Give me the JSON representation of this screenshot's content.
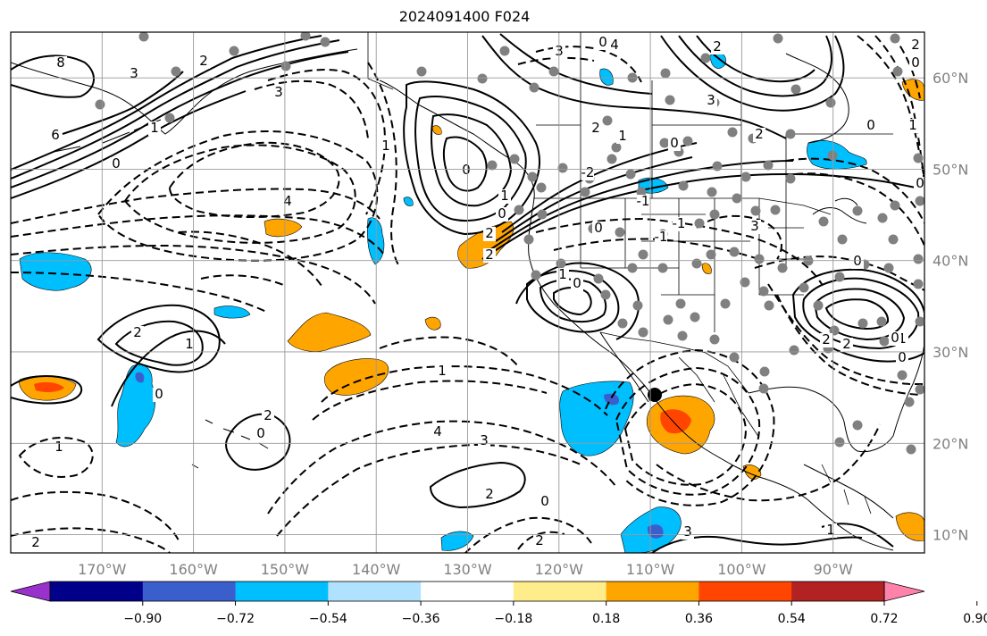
{
  "title": "2024091400 F024",
  "map": {
    "lon_range": [
      -180,
      -80
    ],
    "lat_range": [
      8,
      65
    ],
    "longitude_labels": [
      "170°W",
      "160°W",
      "150°W",
      "140°W",
      "130°W",
      "120°W",
      "110°W",
      "100°W",
      "90°W"
    ],
    "latitude_labels": [
      "60°N",
      "50°N",
      "40°N",
      "30°N",
      "20°N",
      "10°N"
    ],
    "grid_lon": [
      -170,
      -160,
      -150,
      -140,
      -130,
      -120,
      -110,
      -100,
      -90
    ],
    "grid_lat": [
      60,
      50,
      40,
      30,
      20,
      10
    ],
    "contour_labels": [
      "8",
      "6",
      "3",
      "2",
      "3",
      "1",
      "0",
      "4",
      "2",
      "1",
      "0",
      "2",
      "0",
      "1",
      "2",
      "3",
      "4",
      "2",
      "3",
      "2",
      "1",
      "0",
      "2",
      "0",
      "1",
      "2",
      "0",
      "1",
      "0",
      "1",
      "0",
      "2",
      "2",
      "1",
      "0",
      "0",
      "1",
      "0",
      "2",
      "1",
      "4",
      "3",
      "2",
      "0",
      "2",
      "3",
      "1",
      "0",
      "2",
      "3",
      "0",
      "-2",
      "-1",
      "0",
      "-1",
      "-1",
      "0"
    ],
    "marker_color": "#000000"
  },
  "colorbar": {
    "ticks": [
      "−0.90",
      "−0.72",
      "−0.54",
      "−0.36",
      "−0.18",
      "0.18",
      "0.36",
      "0.54",
      "0.72",
      "0.90"
    ],
    "colors": [
      "#9932CC",
      "#00008B",
      "#3A5FCD",
      "#00BFFF",
      "#B0E2FF",
      "#FFFFFF",
      "#FFEC8B",
      "#FFA500",
      "#FF4500",
      "#B22222",
      "#FF82AB"
    ]
  }
}
